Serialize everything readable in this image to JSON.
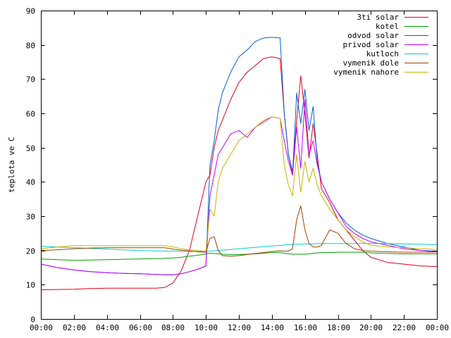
{
  "chart_data": {
    "type": "line",
    "title": "",
    "xlabel": "",
    "ylabel": "teplota ve C",
    "xlim": [
      "00:00",
      "24:00"
    ],
    "ylim": [
      0,
      90
    ],
    "x_ticks": [
      "00:00",
      "02:00",
      "04:00",
      "06:00",
      "08:00",
      "10:00",
      "12:00",
      "14:00",
      "16:00",
      "18:00",
      "20:00",
      "22:00",
      "00:00"
    ],
    "y_ticks": [
      "0",
      "10",
      "20",
      "30",
      "40",
      "50",
      "60",
      "70",
      "80",
      "90"
    ],
    "grid": false,
    "legend_position": "top-right",
    "x": [
      "00:00",
      "01:00",
      "02:00",
      "03:00",
      "04:00",
      "05:00",
      "06:00",
      "07:00",
      "07:30",
      "08:00",
      "08:30",
      "09:00",
      "09:30",
      "10:00",
      "10:15",
      "10:30",
      "10:45",
      "11:00",
      "11:30",
      "12:00",
      "12:30",
      "13:00",
      "13:30",
      "14:00",
      "14:30",
      "14:45",
      "15:00",
      "15:15",
      "15:30",
      "15:45",
      "16:00",
      "16:15",
      "16:30",
      "16:45",
      "17:00",
      "17:30",
      "18:00",
      "18:30",
      "19:00",
      "19:30",
      "20:00",
      "21:00",
      "22:00",
      "23:00",
      "24:00"
    ],
    "series": [
      {
        "name": "3ti solar",
        "color": "#e1001c",
        "values": [
          8.5,
          8.6,
          8.7,
          8.9,
          9.0,
          9.0,
          9.0,
          9.0,
          9.2,
          10.5,
          14,
          20,
          30,
          40,
          42,
          50,
          55,
          58,
          64,
          69,
          72,
          74,
          76,
          76.5,
          76,
          60,
          48,
          43,
          58,
          71,
          60,
          47,
          57,
          48,
          38,
          34,
          29,
          26,
          23,
          20,
          18,
          16.5,
          16,
          15.5,
          15.3
        ]
      },
      {
        "name": "kotel",
        "color": "#00a000",
        "values": [
          17.5,
          17.3,
          17.1,
          17.2,
          17.3,
          17.4,
          17.5,
          17.6,
          17.7,
          17.8,
          18.0,
          18.3,
          18.6,
          19.0,
          19.2,
          19.1,
          19.0,
          18.9,
          18.8,
          18.8,
          18.9,
          19.0,
          19.2,
          19.4,
          19.4,
          19.2,
          19.0,
          18.9,
          18.9,
          18.9,
          18.9,
          19.0,
          19.2,
          19.3,
          19.4,
          19.4,
          19.5,
          19.5,
          19.5,
          19.5,
          19.3,
          19.1,
          19.0,
          19.0,
          19.0
        ]
      },
      {
        "name": "odvod solar",
        "color": "#0060d8",
        "values": [
          16.0,
          15.0,
          14.3,
          13.8,
          13.5,
          13.3,
          13.2,
          13.0,
          12.9,
          12.9,
          13.2,
          13.8,
          14.5,
          15.5,
          45,
          52,
          61,
          66,
          72,
          76.5,
          78.5,
          81,
          82,
          82.2,
          82,
          60,
          48,
          42,
          66,
          57,
          67,
          55,
          62,
          46,
          40,
          35,
          31,
          28,
          26,
          24.5,
          23.5,
          22,
          21,
          20,
          19.8
        ]
      },
      {
        "name": "privod solar",
        "color": "#c000ff",
        "values": [
          16.0,
          15.0,
          14.3,
          13.8,
          13.5,
          13.3,
          13.2,
          13.0,
          12.9,
          12.9,
          13.2,
          13.8,
          14.5,
          15.5,
          36,
          42,
          48,
          50,
          54,
          55,
          53,
          56,
          57.5,
          59,
          58.5,
          52,
          46,
          42,
          56,
          44,
          64,
          48,
          52,
          45,
          40,
          35,
          31,
          27,
          25,
          23.5,
          22.5,
          21.5,
          20.5,
          20,
          19.5
        ]
      },
      {
        "name": "kutloch",
        "color": "#00d0d0",
        "values": [
          21.2,
          21.0,
          20.8,
          20.6,
          20.4,
          20.2,
          20.0,
          19.9,
          19.8,
          19.8,
          19.7,
          19.7,
          19.7,
          19.7,
          19.8,
          19.9,
          20.0,
          20.1,
          20.3,
          20.5,
          20.7,
          20.9,
          21.1,
          21.3,
          21.5,
          21.6,
          21.7,
          21.8,
          21.8,
          21.8,
          21.9,
          21.9,
          21.9,
          22.0,
          22.0,
          22.0,
          22.0,
          22.0,
          22.0,
          22.0,
          22.0,
          22.0,
          21.9,
          21.8,
          21.7
        ]
      },
      {
        "name": "vymenik dole",
        "color": "#a04000",
        "values": [
          20.0,
          20.2,
          20.5,
          20.7,
          20.8,
          20.8,
          20.8,
          20.8,
          20.8,
          20.4,
          20.1,
          19.9,
          19.6,
          19.5,
          23.5,
          24,
          20,
          18.5,
          18.3,
          18.5,
          18.8,
          19.1,
          19.4,
          19.7,
          19.9,
          19.8,
          19.8,
          20.5,
          29,
          33,
          26,
          22,
          21,
          21,
          21.5,
          26,
          25,
          22,
          20.5,
          20,
          19.8,
          19.6,
          19.5,
          19.5,
          19.5
        ]
      },
      {
        "name": "vymenik nahore",
        "color": "#c8b400",
        "values": [
          20.5,
          21.0,
          21.4,
          21.4,
          21.4,
          21.4,
          21.4,
          21.4,
          21.4,
          21.0,
          20.5,
          20.2,
          20.0,
          19.8,
          32,
          30,
          40,
          44,
          48,
          52,
          54,
          56,
          58,
          59,
          58.5,
          45,
          39,
          36,
          48,
          37,
          46,
          40,
          44,
          39,
          36,
          32,
          29,
          26,
          24,
          22.5,
          21.5,
          21,
          20.8,
          20.5,
          20.3
        ]
      }
    ]
  }
}
